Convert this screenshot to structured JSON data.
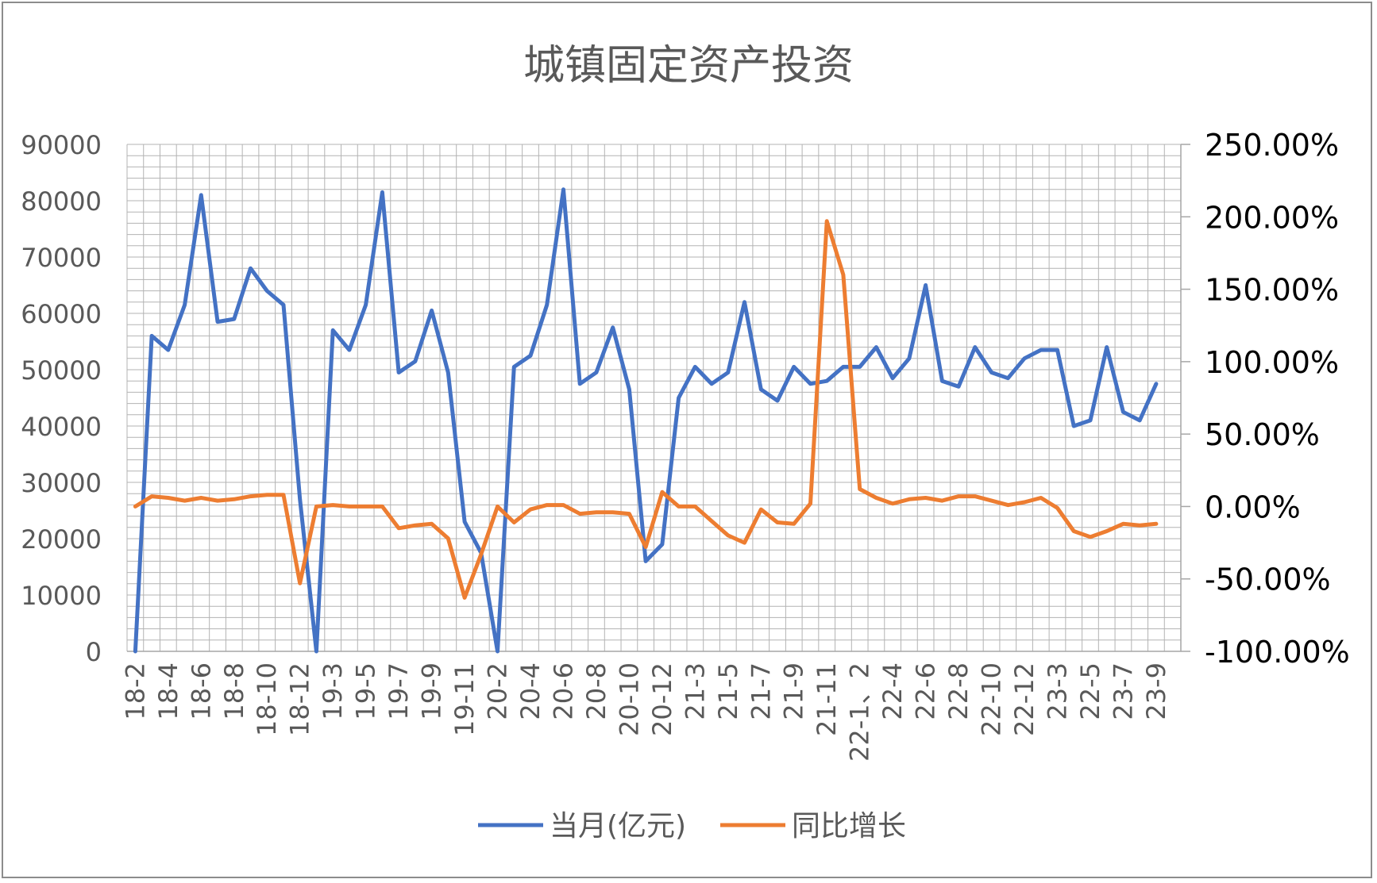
{
  "chart_data": {
    "type": "line",
    "title": "城镇固定资产投资",
    "x_tick_labels": [
      "18-2",
      "18-4",
      "18-6",
      "18-8",
      "18-10",
      "18-12",
      "19-3",
      "19-5",
      "19-7",
      "19-9",
      "19-11",
      "20-2",
      "20-4",
      "20-6",
      "20-8",
      "20-10",
      "20-12",
      "21-3",
      "21-5",
      "21-7",
      "21-9",
      "21-11",
      "22-1、2",
      "22-4",
      "22-6",
      "22-8",
      "22-10",
      "22-12",
      "23-3",
      "22-5",
      "23-7",
      "23-9"
    ],
    "y_left": {
      "ylim": [
        0,
        90000
      ],
      "ticks": [
        "0",
        "10000",
        "20000",
        "30000",
        "40000",
        "50000",
        "60000",
        "70000",
        "80000",
        "90000"
      ]
    },
    "y_right": {
      "ylim": [
        -100,
        250
      ],
      "ticks": [
        "-100.00%",
        "-50.00%",
        "0.00%",
        "50.00%",
        "100.00%",
        "150.00%",
        "200.00%",
        "250.00%"
      ]
    },
    "grid": true,
    "legend": {
      "position": "bottom"
    },
    "series": [
      {
        "name": "当月(亿元)",
        "axis": "left",
        "color": "#4472c4",
        "values": [
          0,
          56000,
          53500,
          61500,
          81000,
          58500,
          59000,
          68000,
          64000,
          61500,
          27000,
          0,
          57000,
          53500,
          61500,
          81500,
          49500,
          51500,
          60500,
          49500,
          23000,
          17500,
          0,
          50500,
          52500,
          61500,
          82000,
          47500,
          49500,
          57500,
          46500,
          16000,
          19000,
          45000,
          50500,
          47500,
          49500,
          62000,
          46500,
          44500,
          50500,
          47500,
          48000,
          50500,
          50500,
          54000,
          48500,
          52000,
          65000,
          48000,
          47000,
          54000,
          49500,
          48500,
          52000,
          53500,
          53500,
          40000,
          41000,
          54000,
          42500,
          41000,
          47500
        ]
      },
      {
        "name": "同比增长",
        "axis": "right",
        "color": "#ed7d31",
        "values": [
          0,
          7,
          6,
          4,
          6,
          4,
          5,
          7,
          8,
          8,
          -53,
          0,
          1,
          0,
          0,
          0,
          -15,
          -13,
          -12,
          -22,
          -63,
          -33,
          0,
          -11,
          -2,
          1,
          1,
          -5,
          -4,
          -4,
          -5,
          -28,
          10,
          0,
          0,
          -10,
          -20,
          -25,
          -2,
          -11,
          -12,
          2,
          197,
          160,
          12,
          6,
          2,
          5,
          6,
          4,
          7,
          7,
          4,
          1,
          3,
          6,
          -1,
          -17,
          -21,
          -17,
          -12,
          -13,
          -12
        ]
      }
    ]
  }
}
